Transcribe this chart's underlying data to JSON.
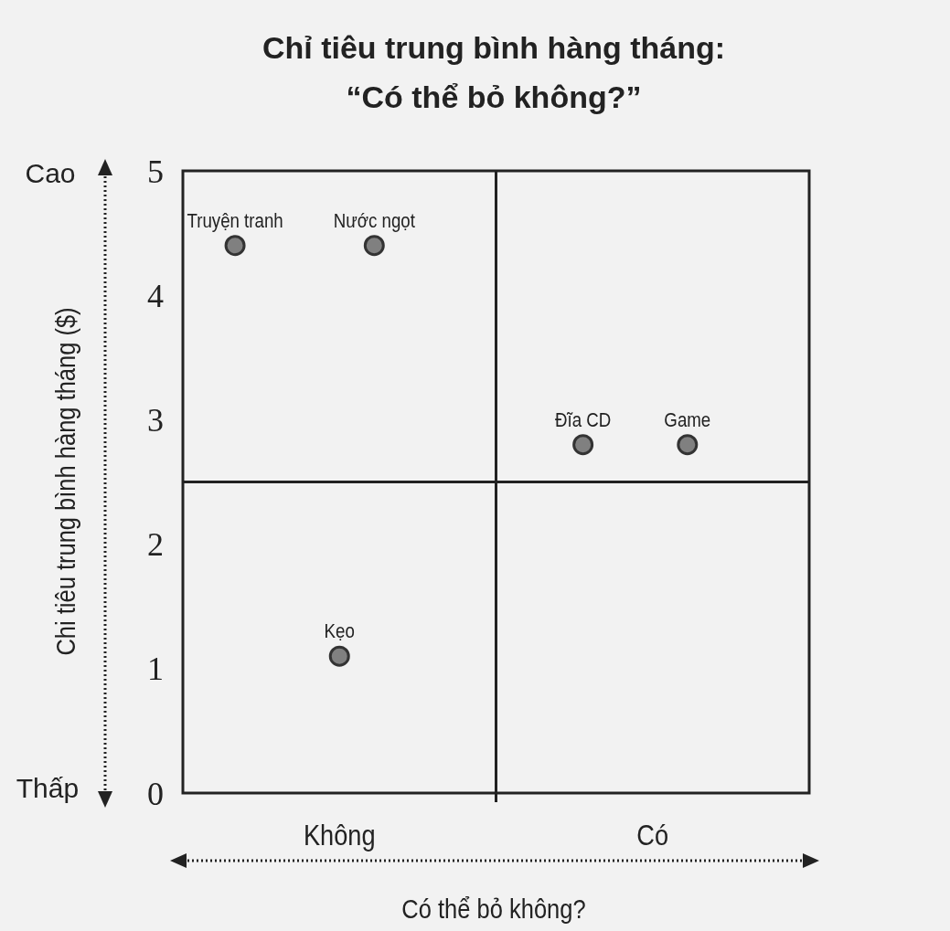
{
  "chart_data": {
    "type": "scatter",
    "title": "Chỉ tiêu trung bình hàng tháng:\n“Có thể bỏ không?”",
    "xlabel": "Có thể bỏ không?",
    "ylabel": "Chi tiêu trung bình hàng tháng ($)",
    "annotations": [
      "Cao",
      "Thấp"
    ],
    "categories": [
      null,
      null,
      null,
      null,
      "Không",
      null,
      null,
      null,
      null,
      null,
      null,
      null,
      null,
      "Có",
      null,
      null,
      null,
      null
    ],
    "ylim": [
      0,
      5
    ],
    "yticks": [
      0,
      1,
      2,
      3,
      4,
      5
    ],
    "marker": "circle",
    "ref_lines": [
      {
        "axis": "y",
        "value": 2.5,
        "color": "#222222"
      }
    ],
    "series": [
      {
        "name": "Truyện tranh",
        "color": "#808080",
        "values": [
          null,
          4.4,
          null,
          null,
          null,
          null,
          null,
          null,
          null,
          null,
          null,
          null,
          null,
          null,
          null,
          null,
          null,
          null
        ]
      },
      {
        "name": "Nước ngọt",
        "color": "#808080",
        "values": [
          null,
          null,
          null,
          null,
          null,
          4.4,
          null,
          null,
          null,
          null,
          null,
          null,
          null,
          null,
          null,
          null,
          null,
          null
        ]
      },
      {
        "name": "Kẹo",
        "color": "#808080",
        "values": [
          null,
          null,
          null,
          null,
          1.1,
          null,
          null,
          null,
          null,
          null,
          null,
          null,
          null,
          null,
          null,
          null,
          null,
          null
        ]
      },
      {
        "name": "Đĩa CD",
        "color": "#808080",
        "values": [
          null,
          null,
          null,
          null,
          null,
          null,
          null,
          null,
          null,
          null,
          null,
          2.8,
          null,
          null,
          null,
          null,
          null,
          null
        ]
      },
      {
        "name": "Game",
        "color": "#808080",
        "values": [
          null,
          null,
          null,
          null,
          null,
          null,
          null,
          null,
          null,
          null,
          null,
          null,
          null,
          null,
          2.8,
          null,
          null,
          null
        ]
      }
    ]
  }
}
